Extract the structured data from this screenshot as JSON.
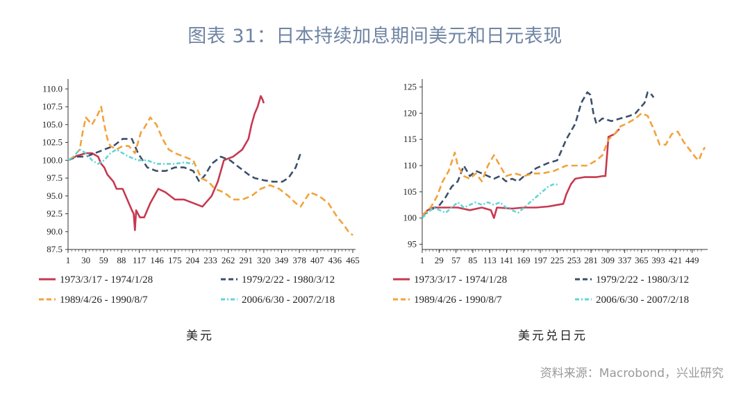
{
  "header": {
    "title": "图表 31：日本持续加息期间美元和日元表现"
  },
  "footer": {
    "source": "资料来源：Macrobond，兴业研究"
  },
  "chart_data": [
    {
      "type": "line",
      "caption": "美元",
      "ylim": [
        87.5,
        111.0
      ],
      "xlim": [
        1,
        465
      ],
      "yticks": [
        "110.0",
        "107.5",
        "105.0",
        "102.5",
        "100.0",
        "97.5",
        "95.0",
        "92.5",
        "90.0",
        "87.5"
      ],
      "xticks": [
        "1",
        "30",
        "59",
        "88",
        "117",
        "146",
        "175",
        "204",
        "233",
        "262",
        "291",
        "320",
        "349",
        "378",
        "407",
        "436",
        "465"
      ],
      "legend_position": "bottom",
      "series": [
        {
          "name": "1973/3/17 - 1974/1/28",
          "color": "#c7384f",
          "style": "solid",
          "points": [
            [
              1,
              100
            ],
            [
              15,
              100.6
            ],
            [
              30,
              101
            ],
            [
              40,
              101
            ],
            [
              50,
              100.5
            ],
            [
              55,
              99.5
            ],
            [
              60,
              99
            ],
            [
              65,
              98
            ],
            [
              75,
              97
            ],
            [
              80,
              96
            ],
            [
              90,
              96
            ],
            [
              100,
              94
            ],
            [
              105,
              93
            ],
            [
              108,
              92.5
            ],
            [
              110,
              90.2
            ],
            [
              112,
              93
            ],
            [
              118,
              92
            ],
            [
              125,
              92
            ],
            [
              135,
              94
            ],
            [
              148,
              96
            ],
            [
              160,
              95.5
            ],
            [
              175,
              94.5
            ],
            [
              190,
              94.5
            ],
            [
              205,
              94
            ],
            [
              220,
              93.5
            ],
            [
              235,
              95
            ],
            [
              245,
              97
            ],
            [
              255,
              100
            ],
            [
              270,
              100.5
            ],
            [
              285,
              101.5
            ],
            [
              295,
              103
            ],
            [
              300,
              105
            ],
            [
              305,
              106.5
            ],
            [
              310,
              107.5
            ],
            [
              315,
              109
            ],
            [
              318,
              108.5
            ],
            [
              320,
              108
            ]
          ]
        },
        {
          "name": "1979/2/22 - 1980/3/12",
          "color": "#3b4f6b",
          "style": "dashed",
          "points": [
            [
              1,
              100
            ],
            [
              15,
              100.5
            ],
            [
              30,
              100.5
            ],
            [
              45,
              101
            ],
            [
              60,
              101.5
            ],
            [
              75,
              102
            ],
            [
              90,
              103
            ],
            [
              105,
              103
            ],
            [
              115,
              101
            ],
            [
              130,
              99
            ],
            [
              145,
              98.5
            ],
            [
              160,
              98.5
            ],
            [
              175,
              99
            ],
            [
              190,
              99
            ],
            [
              205,
              98.5
            ],
            [
              215,
              97
            ],
            [
              225,
              98
            ],
            [
              235,
              99.5
            ],
            [
              250,
              100.5
            ],
            [
              265,
              100
            ],
            [
              280,
              99
            ],
            [
              295,
              98
            ],
            [
              305,
              97.5
            ],
            [
              320,
              97.2
            ],
            [
              335,
              97
            ],
            [
              350,
              97
            ],
            [
              360,
              97.5
            ],
            [
              372,
              99
            ],
            [
              380,
              101
            ]
          ]
        },
        {
          "name": "1989/4/26 - 1990/8/7",
          "color": "#f2a23a",
          "style": "dashed",
          "points": [
            [
              1,
              100
            ],
            [
              10,
              100.5
            ],
            [
              20,
              101.5
            ],
            [
              25,
              104
            ],
            [
              30,
              106
            ],
            [
              40,
              105
            ],
            [
              50,
              106.5
            ],
            [
              55,
              107.5
            ],
            [
              60,
              105
            ],
            [
              65,
              103
            ],
            [
              70,
              102
            ],
            [
              80,
              101.5
            ],
            [
              90,
              102
            ],
            [
              100,
              102
            ],
            [
              110,
              101
            ],
            [
              120,
              104
            ],
            [
              125,
              104.5
            ],
            [
              135,
              106
            ],
            [
              145,
              105
            ],
            [
              155,
              103
            ],
            [
              165,
              101.5
            ],
            [
              175,
              101
            ],
            [
              190,
              100.5
            ],
            [
              205,
              100
            ],
            [
              218,
              97.5
            ],
            [
              230,
              97
            ],
            [
              240,
              96
            ],
            [
              255,
              95.5
            ],
            [
              270,
              94.5
            ],
            [
              285,
              94.5
            ],
            [
              300,
              95
            ],
            [
              315,
              96
            ],
            [
              330,
              96.5
            ],
            [
              345,
              96
            ],
            [
              360,
              95
            ],
            [
              372,
              94
            ],
            [
              380,
              93.5
            ],
            [
              395,
              95.5
            ],
            [
              410,
              95
            ],
            [
              425,
              94
            ],
            [
              440,
              92
            ],
            [
              450,
              91
            ],
            [
              458,
              90
            ],
            [
              465,
              89.5
            ]
          ]
        },
        {
          "name": "2006/6/30 - 2007/2/18",
          "color": "#5ed6d8",
          "style": "dashdot",
          "points": [
            [
              1,
              100
            ],
            [
              10,
              100.5
            ],
            [
              20,
              101.5
            ],
            [
              30,
              101
            ],
            [
              40,
              100
            ],
            [
              50,
              99.5
            ],
            [
              60,
              100
            ],
            [
              70,
              101
            ],
            [
              80,
              101.5
            ],
            [
              90,
              101
            ],
            [
              100,
              100.5
            ],
            [
              115,
              100
            ],
            [
              130,
              100
            ],
            [
              145,
              99.5
            ],
            [
              160,
              99.5
            ],
            [
              175,
              99.5
            ],
            [
              190,
              99.7
            ],
            [
              205,
              99.5
            ]
          ]
        }
      ]
    },
    {
      "type": "line",
      "caption": "美元兑日元",
      "ylim": [
        94.0,
        126.0
      ],
      "xlim": [
        1,
        470
      ],
      "yticks": [
        "125",
        "120",
        "115",
        "110",
        "105",
        "100",
        "95"
      ],
      "xticks": [
        "1",
        "29",
        "57",
        "85",
        "113",
        "141",
        "169",
        "197",
        "225",
        "253",
        "281",
        "309",
        "337",
        "365",
        "393",
        "421",
        "449"
      ],
      "legend_position": "bottom",
      "series": [
        {
          "name": "1973/3/17 - 1974/1/28",
          "color": "#c7384f",
          "style": "solid",
          "points": [
            [
              1,
              100.5
            ],
            [
              10,
              101.5
            ],
            [
              20,
              102
            ],
            [
              40,
              102
            ],
            [
              60,
              102
            ],
            [
              80,
              101.5
            ],
            [
              100,
              102
            ],
            [
              115,
              101.5
            ],
            [
              120,
              100
            ],
            [
              125,
              102
            ],
            [
              150,
              101.8
            ],
            [
              170,
              102
            ],
            [
              190,
              102
            ],
            [
              210,
              102.2
            ],
            [
              225,
              102.5
            ],
            [
              235,
              102.7
            ],
            [
              240,
              104.5
            ],
            [
              248,
              106.5
            ],
            [
              255,
              107.5
            ],
            [
              270,
              107.8
            ],
            [
              290,
              107.8
            ],
            [
              300,
              108
            ],
            [
              305,
              108
            ],
            [
              310,
              115.5
            ],
            [
              320,
              116
            ],
            [
              328,
              117
            ]
          ]
        },
        {
          "name": "1979/2/22 - 1980/3/12",
          "color": "#3b4f6b",
          "style": "dashed",
          "points": [
            [
              1,
              100.5
            ],
            [
              15,
              101.5
            ],
            [
              30,
              102.5
            ],
            [
              40,
              104
            ],
            [
              50,
              106
            ],
            [
              60,
              107
            ],
            [
              70,
              110
            ],
            [
              80,
              108
            ],
            [
              90,
              109
            ],
            [
              100,
              108.5
            ],
            [
              110,
              108
            ],
            [
              120,
              107.5
            ],
            [
              130,
              108
            ],
            [
              140,
              107
            ],
            [
              150,
              107.5
            ],
            [
              160,
              107
            ],
            [
              170,
              108
            ],
            [
              180,
              108.5
            ],
            [
              190,
              109.5
            ],
            [
              200,
              110
            ],
            [
              210,
              110.5
            ],
            [
              225,
              111
            ],
            [
              240,
              115
            ],
            [
              255,
              118
            ],
            [
              265,
              122
            ],
            [
              275,
              124
            ],
            [
              280,
              123.5
            ],
            [
              285,
              120
            ],
            [
              290,
              118
            ],
            [
              300,
              119
            ],
            [
              315,
              118.5
            ],
            [
              330,
              119
            ],
            [
              345,
              119.5
            ],
            [
              355,
              120
            ],
            [
              370,
              122
            ],
            [
              375,
              124
            ],
            [
              382,
              123.5
            ],
            [
              385,
              123
            ]
          ]
        },
        {
          "name": "1989/4/26 - 1990/8/7",
          "color": "#f2a23a",
          "style": "dashed",
          "points": [
            [
              1,
              100.5
            ],
            [
              15,
              102
            ],
            [
              25,
              104
            ],
            [
              35,
              107
            ],
            [
              45,
              109
            ],
            [
              55,
              112.5
            ],
            [
              60,
              110
            ],
            [
              70,
              108
            ],
            [
              80,
              107.5
            ],
            [
              90,
              108.5
            ],
            [
              100,
              107
            ],
            [
              110,
              110
            ],
            [
              120,
              112
            ],
            [
              130,
              110
            ],
            [
              140,
              108
            ],
            [
              155,
              108.5
            ],
            [
              170,
              108
            ],
            [
              185,
              108.5
            ],
            [
              200,
              108.5
            ],
            [
              220,
              109
            ],
            [
              240,
              110
            ],
            [
              260,
              110
            ],
            [
              275,
              110
            ],
            [
              290,
              111
            ],
            [
              300,
              112
            ],
            [
              310,
              115
            ],
            [
              320,
              116
            ],
            [
              330,
              117.5
            ],
            [
              340,
              118
            ],
            [
              355,
              119
            ],
            [
              365,
              120
            ],
            [
              375,
              119.5
            ],
            [
              385,
              117
            ],
            [
              395,
              114
            ],
            [
              405,
              114
            ],
            [
              415,
              116
            ],
            [
              425,
              116.5
            ],
            [
              435,
              114.5
            ],
            [
              445,
              113
            ],
            [
              455,
              111.5
            ],
            [
              460,
              111
            ],
            [
              465,
              112.5
            ],
            [
              470,
              113.5
            ]
          ]
        },
        {
          "name": "2006/6/30 - 2007/2/18",
          "color": "#5ed6d8",
          "style": "dashdot",
          "points": [
            [
              1,
              100
            ],
            [
              10,
              101
            ],
            [
              20,
              102
            ],
            [
              30,
              101.5
            ],
            [
              40,
              101
            ],
            [
              50,
              102
            ],
            [
              60,
              103
            ],
            [
              70,
              102
            ],
            [
              80,
              102.5
            ],
            [
              90,
              103
            ],
            [
              100,
              102.5
            ],
            [
              110,
              103
            ],
            [
              120,
              102.5
            ],
            [
              130,
              103
            ],
            [
              140,
              102
            ],
            [
              150,
              101.5
            ],
            [
              160,
              101
            ],
            [
              170,
              102
            ],
            [
              180,
              103
            ],
            [
              190,
              104
            ],
            [
              200,
              105
            ],
            [
              210,
              106
            ],
            [
              220,
              106.5
            ],
            [
              228,
              106.3
            ]
          ]
        }
      ]
    }
  ]
}
